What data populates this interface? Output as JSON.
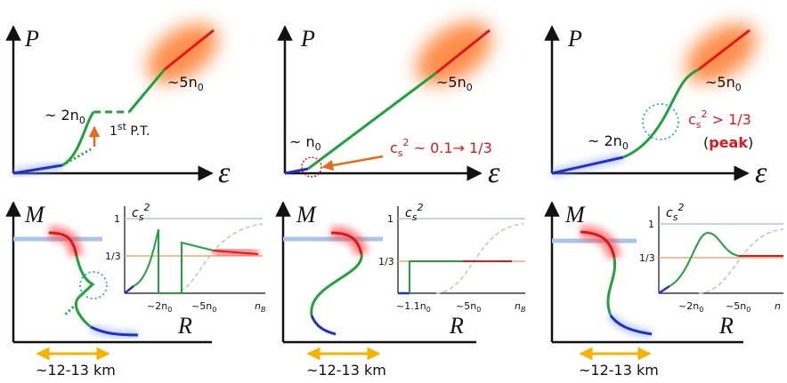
{
  "panels": [
    {
      "eos": {
        "p_axis": "P",
        "e_axis": "ε",
        "low_density": [
          "~ 2n",
          "0"
        ],
        "transition": [
          "1",
          "st",
          " P.T."
        ],
        "high_density": [
          "~5n",
          "0"
        ]
      },
      "mr": {
        "m_axis": "M",
        "r_axis": "R",
        "radius": "~12-13 km",
        "inset": {
          "y_axis": [
            "c",
            "s",
            "2"
          ],
          "one": "1",
          "third": "1/3",
          "x_ticks": [
            [
              "~2n",
              "0"
            ],
            [
              "~5n",
              "0"
            ]
          ],
          "x_axis": [
            "n",
            "B"
          ]
        }
      }
    },
    {
      "eos": {
        "p_axis": "P",
        "e_axis": "ε",
        "low_density": [
          "~ n",
          "0"
        ],
        "sound_speed": [
          "c",
          "s",
          "2",
          " ~ 0.1→ 1/3"
        ],
        "high_density": [
          "~5n",
          "0"
        ]
      },
      "mr": {
        "m_axis": "M",
        "r_axis": "R",
        "radius": "~12-13 km",
        "inset": {
          "y_axis": [
            "c",
            "s",
            "2"
          ],
          "one": "1",
          "third": "1/3",
          "x_ticks": [
            [
              "~1.1n",
              "0"
            ],
            [
              "~5n",
              "0"
            ]
          ],
          "x_axis": [
            "n",
            "B"
          ]
        }
      }
    },
    {
      "eos": {
        "p_axis": "P",
        "e_axis": "ε",
        "low_density": [
          "~ 2n",
          "0"
        ],
        "sound_speed": [
          "c",
          "s",
          "2",
          " > 1/3"
        ],
        "peak": [
          "(",
          "peak",
          ")"
        ],
        "high_density": [
          "~5n",
          "0"
        ]
      },
      "mr": {
        "m_axis": "M",
        "r_axis": "R",
        "radius": "~12-13 km",
        "inset": {
          "y_axis": [
            "c",
            "s",
            "2"
          ],
          "one": "1",
          "third": "1/3",
          "x_ticks": [
            [
              "~2n",
              "0"
            ],
            [
              "~5n",
              "0"
            ]
          ],
          "x_axis": [
            "n"
          ]
        }
      }
    }
  ]
}
